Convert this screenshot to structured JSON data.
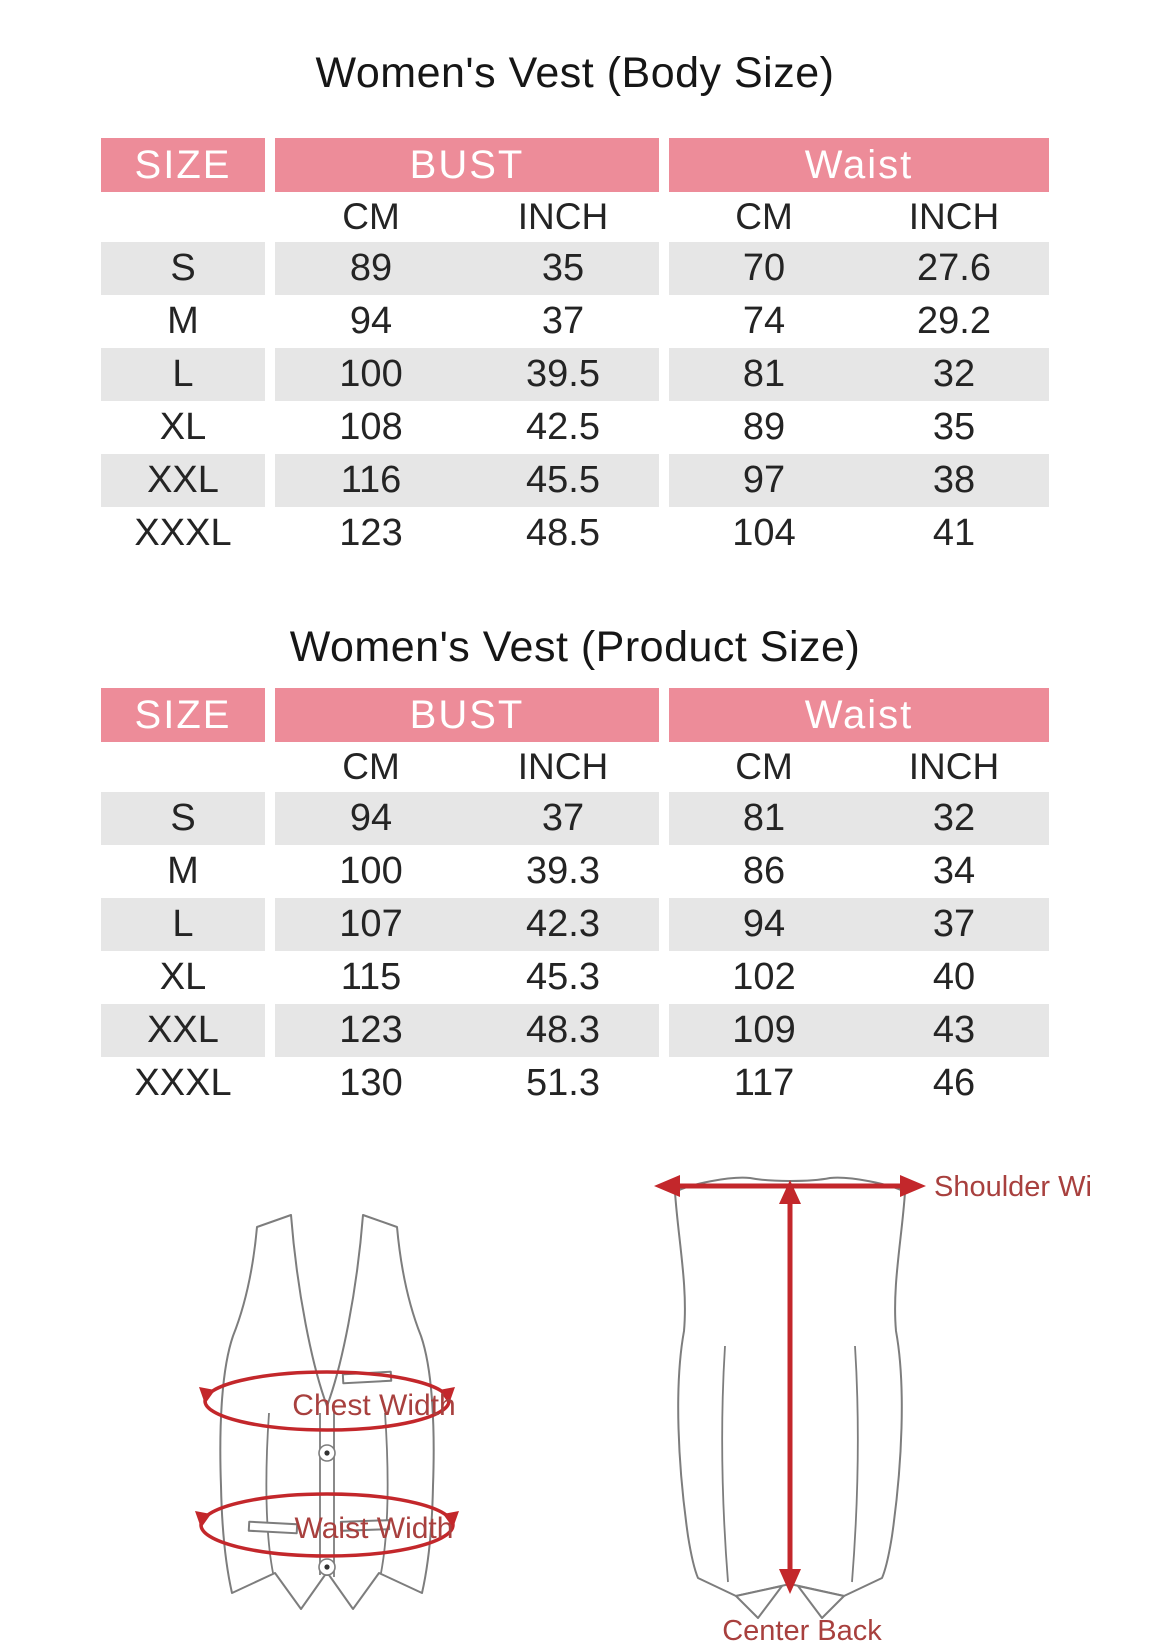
{
  "colors": {
    "header_pink": "#ED8C99",
    "row_gray": "#E6E6E6",
    "page_bg": "#FFFFFF",
    "header_text": "#FFFFFF",
    "arrow_red": "#C3272B",
    "label_red": "#A8403E",
    "vest_outline": "#7D7D7D"
  },
  "tables": [
    {
      "title": "Women's Vest (Body Size)",
      "col_groups": [
        "SIZE",
        "BUST",
        "Waist"
      ],
      "sub_headers": [
        "CM",
        "INCH",
        "CM",
        "INCH"
      ],
      "rows": [
        {
          "size": "S",
          "values": [
            "89",
            "35",
            "70",
            "27.6"
          ]
        },
        {
          "size": "M",
          "values": [
            "94",
            "37",
            "74",
            "29.2"
          ]
        },
        {
          "size": "L",
          "values": [
            "100",
            "39.5",
            "81",
            "32"
          ]
        },
        {
          "size": "XL",
          "values": [
            "108",
            "42.5",
            "89",
            "35"
          ]
        },
        {
          "size": "XXL",
          "values": [
            "116",
            "45.5",
            "97",
            "38"
          ]
        },
        {
          "size": "XXXL",
          "values": [
            "123",
            "48.5",
            "104",
            "41"
          ]
        }
      ]
    },
    {
      "title": "Women's Vest (Product Size)",
      "col_groups": [
        "SIZE",
        "BUST",
        "Waist"
      ],
      "sub_headers": [
        "CM",
        "INCH",
        "CM",
        "INCH"
      ],
      "rows": [
        {
          "size": "S",
          "values": [
            "94",
            "37",
            "81",
            "32"
          ]
        },
        {
          "size": "M",
          "values": [
            "100",
            "39.3",
            "86",
            "34"
          ]
        },
        {
          "size": "L",
          "values": [
            "107",
            "42.3",
            "94",
            "37"
          ]
        },
        {
          "size": "XL",
          "values": [
            "115",
            "45.3",
            "102",
            "40"
          ]
        },
        {
          "size": "XXL",
          "values": [
            "123",
            "48.3",
            "109",
            "43"
          ]
        },
        {
          "size": "XXXL",
          "values": [
            "130",
            "51.3",
            "117",
            "46"
          ]
        }
      ]
    }
  ],
  "diagrams": {
    "front": {
      "chest_label": "Chest Width",
      "waist_label": "Waist Width"
    },
    "back": {
      "shoulder_label": "Shoulder Width",
      "center_back_label": "Center Back"
    }
  }
}
